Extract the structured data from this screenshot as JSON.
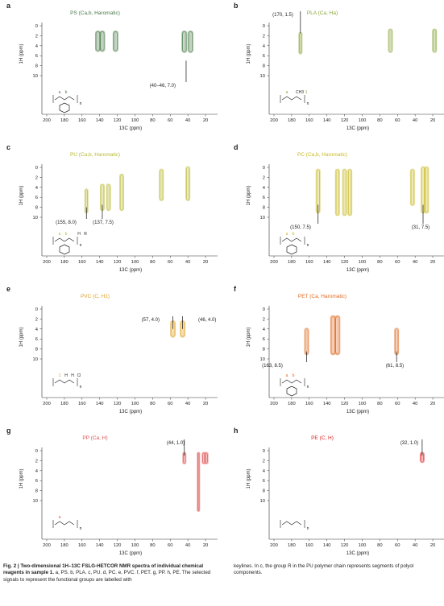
{
  "axis": {
    "x_label": "13C (ppm)",
    "y_label": "1H (ppm)",
    "x_ticks": [
      "200",
      "180",
      "160",
      "140",
      "120",
      "100",
      "80",
      "60",
      "40",
      "20"
    ],
    "y_ticks": [
      "0",
      "2",
      "4",
      "6",
      "8",
      "10"
    ]
  },
  "panels": [
    {
      "id": "a",
      "title": "PS (Ca,b, Haromatic)",
      "color": "#4a7a4a",
      "annotations": [
        "(40–46, 7.0)"
      ],
      "struct_labels": [
        "a",
        "b",
        "n"
      ]
    },
    {
      "id": "b",
      "title": "PLA (Ca, Ha)",
      "color": "#8aa63a",
      "annotations": [
        "(170, 1.5)"
      ],
      "struct_labels": [
        "a",
        "n",
        "CH3",
        "1"
      ]
    },
    {
      "id": "c",
      "title": "PU (Ca,b, Haromatic)",
      "color": "#b8b830",
      "annotations": [
        "(155, 8.0)",
        "(137, 7.5)"
      ],
      "struct_labels": [
        "a",
        "b",
        "n",
        "H",
        "R"
      ]
    },
    {
      "id": "d",
      "title": "PC (Ca,b, Haromatic)",
      "color": "#c8b820",
      "annotations": [
        "(150, 7.5)",
        "(31, 7.5)"
      ],
      "struct_labels": [
        "a",
        "b",
        "n"
      ]
    },
    {
      "id": "e",
      "title": "PVC (C, H1)",
      "color": "#e0a020",
      "annotations": [
        "(57, 4.0)",
        "(46, 4.0)"
      ],
      "struct_labels": [
        "1",
        "H",
        "H",
        "Cl",
        "n"
      ]
    },
    {
      "id": "f",
      "title": "PET (Ca, Haromatic)",
      "color": "#e06a20",
      "annotations": [
        "(163, 8.5)",
        "(61, 8.5)"
      ],
      "struct_labels": [
        "a",
        "b",
        "n"
      ]
    },
    {
      "id": "g",
      "title": "PP (Ca, H)",
      "color": "#e05050",
      "annotations": [
        "(44, 1.0)"
      ],
      "struct_labels": [
        "a",
        "n"
      ]
    },
    {
      "id": "h",
      "title": "PE (C, H)",
      "color": "#e02020",
      "annotations": [
        "(32, 1.0)"
      ],
      "struct_labels": [
        "n"
      ]
    }
  ],
  "caption": {
    "bold_part": "Fig. 2 | Two-dimensional 1H–13C FSLG-HETCOR NMR spectra of individual chemical reagents in sample 1.",
    "text_part": " a, PS. b, PLA. c, PU. d, PC. e, PVC. f, PET. g, PP. h, PE. The selected signals to represent the functional groups are labelled with",
    "right_text": "keylines. In c, the group R in the PU polymer chain represents segments of polyol components."
  }
}
